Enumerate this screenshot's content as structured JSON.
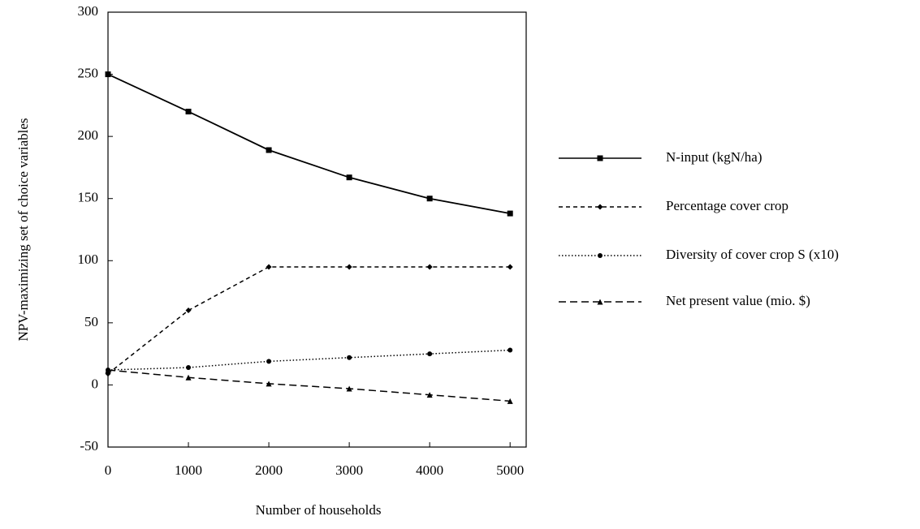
{
  "chart_data": {
    "type": "line",
    "x_label": "Number of households",
    "y_label": "NPV-maximizing set of choice variables",
    "x": [
      0,
      1000,
      2000,
      3000,
      4000,
      5000
    ],
    "xlim": [
      0,
      5200
    ],
    "xticks": [
      0,
      1000,
      2000,
      3000,
      4000,
      5000
    ],
    "ylim": [
      -50,
      300
    ],
    "yticks": [
      -50,
      0,
      50,
      100,
      150,
      200,
      250,
      300
    ],
    "grid": false,
    "legend": "right",
    "series": [
      {
        "name": "N-input (kgN/ha)",
        "color": "#000000",
        "dash": "solid",
        "marker": "square",
        "values": [
          250,
          220,
          189,
          167,
          150,
          138
        ]
      },
      {
        "name": "Percentage cover crop",
        "color": "#000000",
        "dash": "dashed",
        "marker": "diamond",
        "values": [
          9,
          60,
          95,
          95,
          95,
          95
        ]
      },
      {
        "name": "Diversity of cover crop S (x10)",
        "color": "#000000",
        "dash": "dotted",
        "marker": "circle",
        "values": [
          12,
          14,
          19,
          22,
          25,
          28
        ]
      },
      {
        "name": "Net present value (mio. $)",
        "color": "#000000",
        "dash": "longdash",
        "marker": "triangle",
        "values": [
          12,
          6,
          1,
          -3,
          -8,
          -13
        ]
      }
    ]
  }
}
